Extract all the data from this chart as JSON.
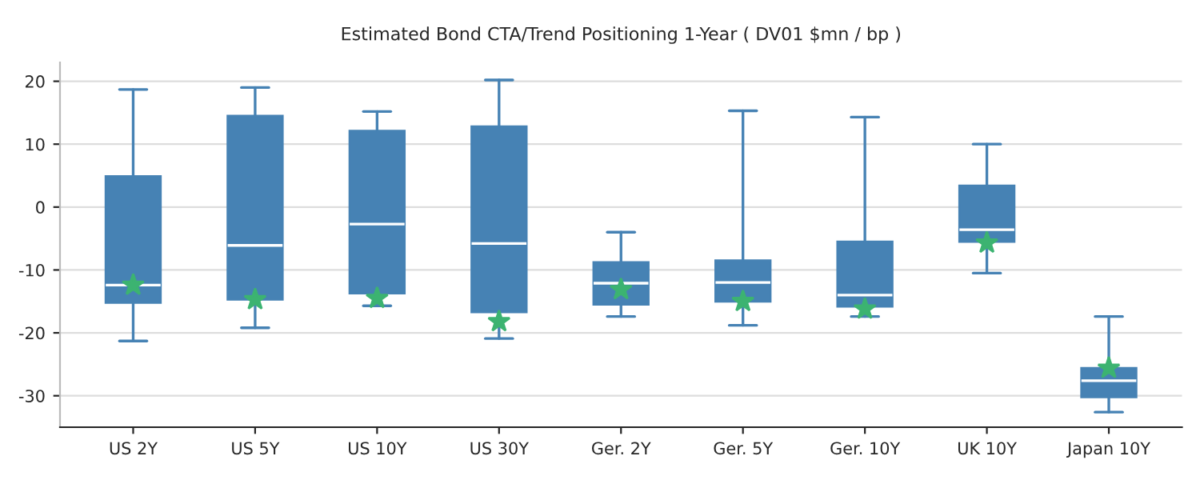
{
  "chart_data": {
    "type": "box",
    "title": "Estimated Bond CTA/Trend Positioning 1-Year ( DV01 $mn / bp )",
    "categories": [
      "US 2Y",
      "US 5Y",
      "US 10Y",
      "US 30Y",
      "Ger. 2Y",
      "Ger. 5Y",
      "Ger. 10Y",
      "UK 10Y",
      "Japan 10Y"
    ],
    "series": [
      {
        "color": "#4682b4",
        "boxes": [
          {
            "low": -21.3,
            "q1": -15.2,
            "median": -12.4,
            "q3": 4.9,
            "high": 18.7,
            "mean": -12.4
          },
          {
            "low": -19.2,
            "q1": -14.7,
            "median": -6.1,
            "q3": 14.5,
            "high": 19.0,
            "mean": -14.7
          },
          {
            "low": -15.7,
            "q1": -13.7,
            "median": -2.7,
            "q3": 12.1,
            "high": 15.2,
            "mean": -14.5
          },
          {
            "low": -20.9,
            "q1": -16.7,
            "median": -5.8,
            "q3": 12.8,
            "high": 20.2,
            "mean": -18.2
          },
          {
            "low": -17.4,
            "q1": -15.5,
            "median": -12.1,
            "q3": -8.8,
            "high": -4.0,
            "mean": -13.1
          },
          {
            "low": -18.8,
            "q1": -15.0,
            "median": -12.0,
            "q3": -8.5,
            "high": 15.3,
            "mean": -15.0
          },
          {
            "low": -17.4,
            "q1": -15.8,
            "median": -14.0,
            "q3": -5.5,
            "high": 14.3,
            "mean": -16.2
          },
          {
            "low": -10.5,
            "q1": -5.5,
            "median": -3.6,
            "q3": 3.4,
            "high": 10.0,
            "mean": -5.7
          },
          {
            "low": -32.6,
            "q1": -30.2,
            "median": -27.6,
            "q3": -25.6,
            "high": -17.4,
            "mean": -25.6
          }
        ]
      }
    ],
    "ylim": [
      -35,
      23
    ],
    "yticks": [
      -30,
      -20,
      -10,
      0,
      10,
      20
    ],
    "grid": "y",
    "marker": "star",
    "legend": false
  }
}
